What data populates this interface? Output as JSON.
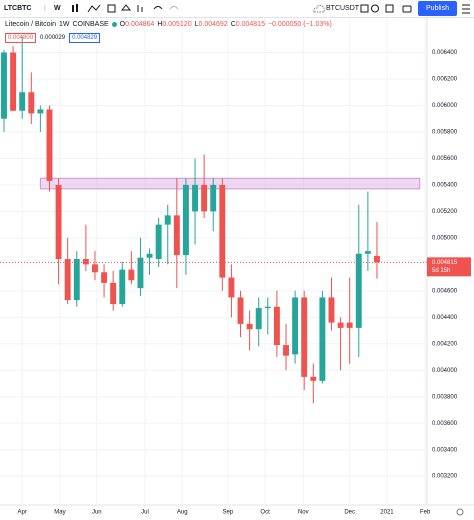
{
  "toolbar": {
    "symbol": "LTCBTC",
    "interval": "W",
    "layout": "BTCUSDT",
    "publish": "Publish"
  },
  "legend": {
    "description": "Litecoin / Bitcoin",
    "interval": "1W",
    "exchange": "COINBASE",
    "values": [
      {
        "key": "O",
        "value": "0.004864"
      },
      {
        "key": "H",
        "value": "0.005120"
      },
      {
        "key": "L",
        "value": "0.004692"
      },
      {
        "key": "C",
        "value": "0.004815"
      }
    ],
    "change": "−0.000050 (−1.03%)",
    "sell": "0.004800",
    "spread": "0.000029",
    "buy": "0.004829"
  },
  "chart_data": {
    "type": "candlestick",
    "categories": [
      null,
      null,
      null,
      null,
      null,
      null,
      null,
      null,
      null,
      null,
      null,
      null,
      null,
      null,
      null,
      null,
      null,
      null,
      null,
      null,
      null,
      null,
      null,
      null,
      null,
      null,
      null,
      null,
      null,
      null,
      null,
      null,
      null,
      null,
      null,
      null,
      null,
      null,
      null,
      null,
      null,
      null
    ],
    "open": [
      0.0059,
      0.0064,
      0.00596,
      0.0061,
      0.00594,
      0.00597,
      0.0054,
      0.00484,
      0.00453,
      0.00484,
      0.0048,
      0.00474,
      0.00466,
      0.0045,
      0.00476,
      0.00462,
      0.00485,
      0.00484,
      0.0051,
      0.00517,
      0.00487,
      0.0052,
      0.0054,
      0.0052,
      0.0054,
      0.0047,
      0.00455,
      0.00435,
      0.00431,
      0.00447,
      0.00448,
      0.00419,
      0.00412,
      0.00455,
      0.00395,
      0.00392,
      0.00455,
      0.00436,
      0.00436,
      0.00432,
      0.00488,
      0.004864
    ],
    "high": [
      0.00642,
      0.00645,
      0.00652,
      0.00625,
      0.006,
      0.006,
      0.00545,
      0.005,
      0.0049,
      0.0051,
      0.0049,
      0.0048,
      0.00475,
      0.00482,
      0.0049,
      0.005,
      0.00492,
      0.00515,
      0.00525,
      0.00545,
      0.00545,
      0.0056,
      0.00563,
      0.00545,
      0.00545,
      0.0048,
      0.0046,
      0.00445,
      0.00455,
      0.00455,
      0.0046,
      0.00435,
      0.0046,
      0.0046,
      0.00405,
      0.0046,
      0.0047,
      0.0044,
      0.0047,
      0.00525,
      0.00535,
      0.00512
    ],
    "low": [
      0.0058,
      0.00596,
      0.0059,
      0.00586,
      0.0058,
      0.00535,
      0.00465,
      0.0045,
      0.00448,
      0.00475,
      0.00468,
      0.00455,
      0.00445,
      0.00448,
      0.00465,
      0.00456,
      0.00472,
      0.00478,
      0.0048,
      0.00462,
      0.00472,
      0.00495,
      0.00515,
      0.00505,
      0.0046,
      0.0044,
      0.00425,
      0.00415,
      0.00418,
      0.00427,
      0.0041,
      0.004,
      0.00405,
      0.00385,
      0.00375,
      0.0039,
      0.0043,
      0.004,
      0.00405,
      0.0041,
      0.00475,
      0.004692
    ],
    "close": [
      0.0064,
      0.00596,
      0.0061,
      0.00594,
      0.00597,
      0.00543,
      0.00484,
      0.00453,
      0.00484,
      0.0048,
      0.00474,
      0.00466,
      0.0045,
      0.00476,
      0.00468,
      0.00485,
      0.00488,
      0.0051,
      0.00517,
      0.00487,
      0.0054,
      0.0054,
      0.0052,
      0.0054,
      0.0047,
      0.00455,
      0.00435,
      0.00431,
      0.00447,
      0.00448,
      0.00419,
      0.00411,
      0.00455,
      0.00395,
      0.00392,
      0.00455,
      0.00436,
      0.00432,
      0.00432,
      0.00488,
      0.0049,
      0.004815
    ],
    "up_color": "#26a69a",
    "down_color": "#ef5350",
    "xlim": [
      -0.44,
      46.5
    ],
    "xticks": [
      {
        "value": 2,
        "label": "Apr"
      },
      {
        "value": 6.15,
        "label": "May"
      },
      {
        "value": 10.2,
        "label": "Jun"
      },
      {
        "value": 15.5,
        "label": "Jul"
      },
      {
        "value": 19.6,
        "label": "Aug"
      },
      {
        "value": 24.6,
        "label": "Sep"
      },
      {
        "value": 28.7,
        "label": "Oct"
      },
      {
        "value": 32.9,
        "label": "Nov"
      },
      {
        "value": 38,
        "label": "Dec"
      },
      {
        "value": 42.1,
        "label": "2021"
      },
      {
        "value": 46.3,
        "label": "Feb"
      }
    ],
    "ylim": [
      0.00302,
      0.00657
    ],
    "yticks": [
      {
        "value": 0.0032,
        "label": "0.003200"
      },
      {
        "value": 0.0034,
        "label": "0.003400"
      },
      {
        "value": 0.0036,
        "label": "0.003600"
      },
      {
        "value": 0.0038,
        "label": "0.003800"
      },
      {
        "value": 0.004,
        "label": "0.004000"
      },
      {
        "value": 0.0042,
        "label": "0.004200"
      },
      {
        "value": 0.0044,
        "label": "0.004400"
      },
      {
        "value": 0.0046,
        "label": "0.004600"
      },
      {
        "value": 0.005,
        "label": "0.005000"
      },
      {
        "value": 0.0052,
        "label": "0.005200"
      },
      {
        "value": 0.0054,
        "label": "0.005400"
      },
      {
        "value": 0.0056,
        "label": "0.005600"
      },
      {
        "value": 0.0058,
        "label": "0.005800"
      },
      {
        "value": 0.006,
        "label": "0.006000"
      },
      {
        "value": 0.0062,
        "label": "0.006200"
      },
      {
        "value": 0.0064,
        "label": "0.006400"
      }
    ],
    "grid": true,
    "zone": {
      "low": 0.00537,
      "high": 0.00545,
      "start": 4,
      "end": 45.7,
      "color": "#ce93d8"
    },
    "countdown": "5d 15h"
  }
}
